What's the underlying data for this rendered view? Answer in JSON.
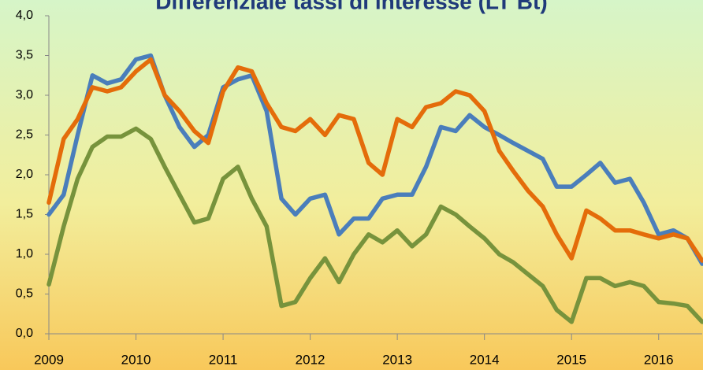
{
  "chart_data": {
    "type": "line",
    "title": "Differenziale tassi di interesse (LT Bt)",
    "x": [
      2009,
      2009.17,
      2009.33,
      2009.5,
      2009.67,
      2009.83,
      2010,
      2010.17,
      2010.33,
      2010.5,
      2010.67,
      2010.83,
      2011,
      2011.17,
      2011.33,
      2011.5,
      2011.67,
      2011.83,
      2012,
      2012.17,
      2012.33,
      2012.5,
      2012.67,
      2012.83,
      2013,
      2013.17,
      2013.33,
      2013.5,
      2013.67,
      2013.83,
      2014,
      2014.17,
      2014.33,
      2014.5,
      2014.67,
      2014.83,
      2015,
      2015.17,
      2015.33,
      2015.5,
      2015.67,
      2015.83,
      2016,
      2016.17,
      2016.33,
      2016.5
    ],
    "series": [
      {
        "color": "#4a7ebb",
        "values": [
          1.5,
          1.75,
          2.5,
          3.25,
          3.15,
          3.2,
          3.45,
          3.5,
          3.0,
          2.6,
          2.35,
          2.5,
          3.1,
          3.2,
          3.25,
          2.8,
          1.7,
          1.5,
          1.7,
          1.75,
          1.25,
          1.45,
          1.45,
          1.7,
          1.75,
          1.75,
          2.1,
          2.6,
          2.55,
          2.75,
          2.6,
          2.5,
          2.4,
          2.3,
          2.2,
          1.85,
          1.85,
          2.0,
          2.15,
          1.9,
          1.95,
          1.65,
          1.25,
          1.3,
          1.2,
          0.88
        ]
      },
      {
        "color": "#e46c0a",
        "values": [
          1.65,
          2.45,
          2.7,
          3.1,
          3.05,
          3.1,
          3.3,
          3.45,
          3.0,
          2.8,
          2.55,
          2.4,
          3.05,
          3.35,
          3.3,
          2.9,
          2.6,
          2.55,
          2.7,
          2.5,
          2.75,
          2.7,
          2.15,
          2.0,
          2.7,
          2.6,
          2.85,
          2.9,
          3.05,
          3.0,
          2.8,
          2.3,
          2.05,
          1.8,
          1.6,
          1.25,
          0.95,
          1.55,
          1.45,
          1.3,
          1.3,
          1.25,
          1.2,
          1.25,
          1.2,
          0.92
        ]
      },
      {
        "color": "#77933c",
        "values": [
          0.62,
          1.35,
          1.95,
          2.35,
          2.48,
          2.48,
          2.58,
          2.45,
          2.1,
          1.75,
          1.4,
          1.45,
          1.95,
          2.1,
          1.7,
          1.35,
          0.35,
          0.4,
          0.7,
          0.95,
          0.65,
          1.0,
          1.25,
          1.15,
          1.3,
          1.1,
          1.25,
          1.6,
          1.5,
          1.35,
          1.2,
          1.0,
          0.9,
          0.75,
          0.6,
          0.3,
          0.15,
          0.7,
          0.7,
          0.6,
          0.65,
          0.6,
          0.4,
          0.38,
          0.35,
          0.15
        ]
      }
    ],
    "xlim": [
      2009,
      2016.5
    ],
    "xticks": [
      2009,
      2010,
      2011,
      2012,
      2013,
      2014,
      2015,
      2016
    ],
    "ylim": [
      0,
      4
    ],
    "yticks": [
      {
        "value": 0,
        "label": "0,0"
      },
      {
        "value": 0.5,
        "label": "0,5"
      },
      {
        "value": 1,
        "label": "1,0"
      },
      {
        "value": 1.5,
        "label": "1,5"
      },
      {
        "value": 2,
        "label": "2,0"
      },
      {
        "value": 2.5,
        "label": "2,5"
      },
      {
        "value": 3,
        "label": "3,0"
      },
      {
        "value": 3.5,
        "label": "3,5"
      },
      {
        "value": 4,
        "label": "4,0"
      }
    ]
  }
}
